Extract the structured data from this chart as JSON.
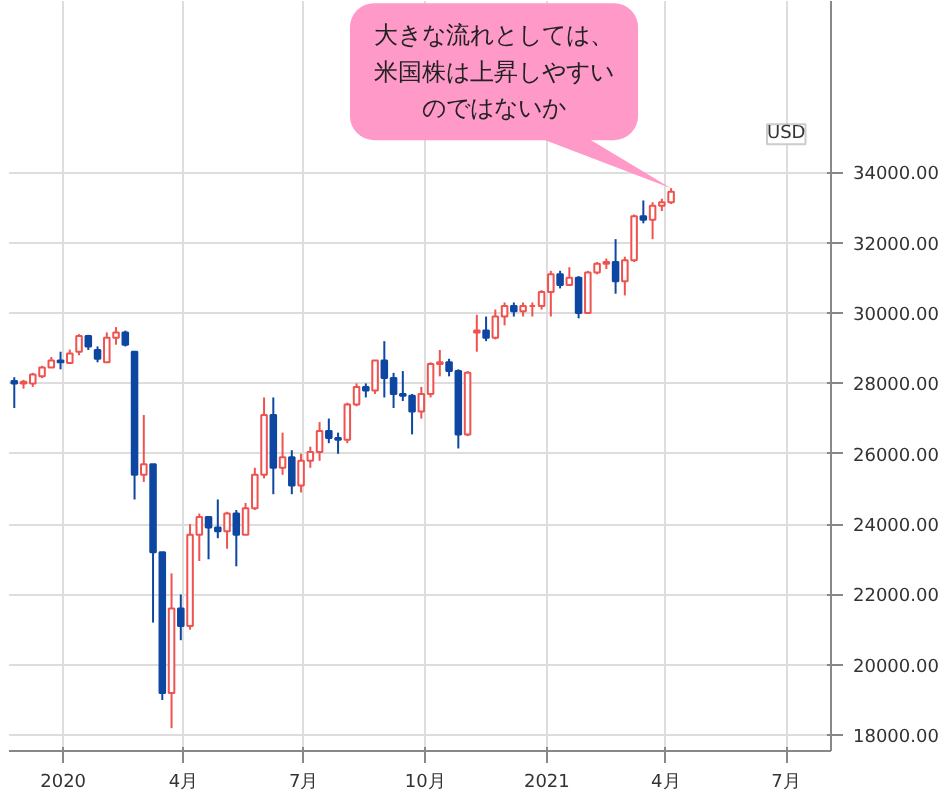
{
  "chart_data": {
    "type": "candlestick",
    "ylabel": "USD",
    "colors": [
      "#0d47a1",
      "#ef5350",
      "#ef5350",
      "#ef5350",
      "#ef5350",
      "#0d47a1",
      "#ef5350",
      "#ef5350",
      "#0d47a1",
      "#0d47a1",
      "#ef5350",
      "#ef5350",
      "#0d47a1",
      "#0d47a1",
      "#ef5350",
      "#0d47a1",
      "#0d47a1",
      "#ef5350",
      "#0d47a1",
      "#ef5350",
      "#ef5350",
      "#0d47a1",
      "#0d47a1",
      "#ef5350",
      "#0d47a1",
      "#ef5350",
      "#ef5350",
      "#ef5350",
      "#0d47a1",
      "#ef5350",
      "#0d47a1",
      "#ef5350",
      "#ef5350",
      "#ef5350",
      "#0d47a1",
      "#0d47a1",
      "#ef5350",
      "#ef5350",
      "#0d47a1",
      "#ef5350",
      "#0d47a1",
      "#0d47a1",
      "#0d47a1",
      "#0d47a1",
      "#ef5350",
      "#ef5350",
      "#ef5350",
      "#0d47a1",
      "#0d47a1",
      "#ef5350",
      "#ef5350",
      "#0d47a1",
      "#ef5350",
      "#ef5350",
      "#0d47a1",
      "#ef5350",
      "#ef5350",
      "#ef5350",
      "#ef5350",
      "#0d47a1",
      "#ef5350",
      "#0d47a1",
      "#ef5350",
      "#ef5350",
      "#ef5350",
      "#0d47a1",
      "#ef5350",
      "#ef5350",
      "#0d47a1",
      "#ef5350",
      "#ef5350",
      "#ef5350"
    ],
    "x": [
      "2019-11-25",
      "2019-12-02",
      "2019-12-09",
      "2019-12-16",
      "2019-12-23",
      "2019-12-30",
      "2020-01-06",
      "2020-01-13",
      "2020-01-20",
      "2020-01-27",
      "2020-02-03",
      "2020-02-10",
      "2020-02-17",
      "2020-02-24",
      "2020-03-02",
      "2020-03-09",
      "2020-03-16",
      "2020-03-23",
      "2020-03-30",
      "2020-04-06",
      "2020-04-13",
      "2020-04-20",
      "2020-04-27",
      "2020-05-04",
      "2020-05-11",
      "2020-05-18",
      "2020-05-25",
      "2020-06-01",
      "2020-06-08",
      "2020-06-15",
      "2020-06-22",
      "2020-06-29",
      "2020-07-06",
      "2020-07-13",
      "2020-07-20",
      "2020-07-27",
      "2020-08-03",
      "2020-08-10",
      "2020-08-17",
      "2020-08-24",
      "2020-08-31",
      "2020-09-07",
      "2020-09-14",
      "2020-09-21",
      "2020-09-28",
      "2020-10-05",
      "2020-10-12",
      "2020-10-19",
      "2020-10-26",
      "2020-11-02",
      "2020-11-09",
      "2020-11-16",
      "2020-11-23",
      "2020-11-30",
      "2020-12-07",
      "2020-12-14",
      "2020-12-21",
      "2020-12-28",
      "2021-01-04",
      "2021-01-11",
      "2021-01-18",
      "2021-01-25",
      "2021-02-01",
      "2021-02-08",
      "2021-02-15",
      "2021-02-22",
      "2021-03-01",
      "2021-03-08",
      "2021-03-15",
      "2021-03-22",
      "2021-03-29",
      "2021-04-05"
    ],
    "ohlc": [
      [
        28066,
        28175,
        27300,
        28000
      ],
      [
        28000,
        28100,
        27850,
        28050
      ],
      [
        28000,
        28300,
        27900,
        28250
      ],
      [
        28200,
        28500,
        28150,
        28450
      ],
      [
        28450,
        28750,
        28450,
        28650
      ],
      [
        28650,
        28900,
        28400,
        28600
      ],
      [
        28580,
        28960,
        28560,
        28850
      ],
      [
        28900,
        29400,
        28800,
        29350
      ],
      [
        29350,
        29380,
        28950,
        29050
      ],
      [
        28950,
        29050,
        28600,
        28700
      ],
      [
        28600,
        29450,
        28600,
        29300
      ],
      [
        29300,
        29600,
        29100,
        29450
      ],
      [
        29450,
        29500,
        29050,
        29100
      ],
      [
        28900,
        28900,
        24700,
        25400
      ],
      [
        25400,
        27100,
        25200,
        25700
      ],
      [
        25700,
        25700,
        21200,
        23200
      ],
      [
        23200,
        23200,
        19000,
        19200
      ],
      [
        19200,
        22600,
        18200,
        21600
      ],
      [
        21600,
        22000,
        20700,
        21100
      ],
      [
        21100,
        24000,
        21000,
        23700
      ],
      [
        23700,
        24300,
        22950,
        24200
      ],
      [
        24200,
        24200,
        23000,
        23900
      ],
      [
        23900,
        24700,
        23600,
        23800
      ],
      [
        23800,
        24350,
        23300,
        24300
      ],
      [
        24300,
        24400,
        22800,
        23700
      ],
      [
        23700,
        24600,
        23700,
        24450
      ],
      [
        24450,
        25600,
        24400,
        25400
      ],
      [
        25400,
        27600,
        25300,
        27100
      ],
      [
        27100,
        27600,
        24850,
        25600
      ],
      [
        25600,
        26600,
        25400,
        25900
      ],
      [
        25900,
        26100,
        24850,
        25100
      ],
      [
        25100,
        26000,
        24900,
        25800
      ],
      [
        25800,
        26200,
        25600,
        26050
      ],
      [
        26050,
        26900,
        25800,
        26650
      ],
      [
        26650,
        27000,
        26300,
        26450
      ],
      [
        26450,
        26600,
        26000,
        26400
      ],
      [
        26400,
        27450,
        26300,
        27400
      ],
      [
        27400,
        28000,
        27350,
        27900
      ],
      [
        27900,
        28000,
        27600,
        27800
      ],
      [
        27800,
        28650,
        27700,
        28650
      ],
      [
        28650,
        29200,
        27600,
        28150
      ],
      [
        28150,
        28300,
        27300,
        27700
      ],
      [
        27700,
        28350,
        27500,
        27650
      ],
      [
        27650,
        27700,
        26550,
        27200
      ],
      [
        27200,
        27900,
        27000,
        27700
      ],
      [
        27700,
        28600,
        27600,
        28550
      ],
      [
        28550,
        28950,
        28200,
        28600
      ],
      [
        28600,
        28700,
        28200,
        28350
      ],
      [
        28350,
        28400,
        26150,
        26550
      ],
      [
        26550,
        28350,
        26500,
        28300
      ],
      [
        29450,
        29950,
        28900,
        29500
      ],
      [
        29500,
        29900,
        29200,
        29300
      ],
      [
        29300,
        30100,
        29250,
        29900
      ],
      [
        29900,
        30300,
        29650,
        30200
      ],
      [
        30200,
        30300,
        29900,
        30050
      ],
      [
        30050,
        30300,
        29900,
        30200
      ],
      [
        30200,
        30300,
        29900,
        30200
      ],
      [
        30200,
        30650,
        30100,
        30600
      ],
      [
        30600,
        31200,
        29900,
        31100
      ],
      [
        31100,
        31200,
        30700,
        30800
      ],
      [
        30800,
        31300,
        30800,
        31000
      ],
      [
        31000,
        31050,
        29850,
        30000
      ],
      [
        30000,
        31200,
        30000,
        31150
      ],
      [
        31150,
        31450,
        31100,
        31400
      ],
      [
        31400,
        31550,
        31250,
        31450
      ],
      [
        31450,
        32100,
        30550,
        30900
      ],
      [
        30900,
        31600,
        30500,
        31500
      ],
      [
        31500,
        32800,
        31450,
        32750
      ],
      [
        32750,
        33200,
        32550,
        32650
      ],
      [
        32650,
        33150,
        32100,
        33050
      ],
      [
        33050,
        33250,
        32900,
        33150
      ],
      [
        33150,
        33550,
        33100,
        33450
      ]
    ],
    "xlim": [
      "2019-11-21",
      "2021-08-04"
    ],
    "xticks": [
      {
        "value": "2020-01-01",
        "label": "2020"
      },
      {
        "value": "2020-04-01",
        "label": "4月"
      },
      {
        "value": "2020-07-01",
        "label": "7月"
      },
      {
        "value": "2020-10-01",
        "label": "10月"
      },
      {
        "value": "2021-01-01",
        "label": "2021"
      },
      {
        "value": "2021-04-01",
        "label": "4月"
      },
      {
        "value": "2021-07-01",
        "label": "7月"
      }
    ],
    "ylim": [
      17550,
      38870
    ],
    "yticks": [
      {
        "value": 18000,
        "label": "18000.00"
      },
      {
        "value": 20000,
        "label": "20000.00"
      },
      {
        "value": 22000,
        "label": "22000.00"
      },
      {
        "value": 24000,
        "label": "24000.00"
      },
      {
        "value": 26000,
        "label": "26000.00"
      },
      {
        "value": 28000,
        "label": "28000.00"
      },
      {
        "value": 30000,
        "label": "30000.00"
      },
      {
        "value": 32000,
        "label": "32000.00"
      },
      {
        "value": 34000,
        "label": "34000.00"
      }
    ],
    "grid": true,
    "annotations": [
      {
        "text": "大きな流れとしては、米国株は上昇しやすいのではないか",
        "x": "2021-04-05",
        "y": 33550
      }
    ]
  }
}
